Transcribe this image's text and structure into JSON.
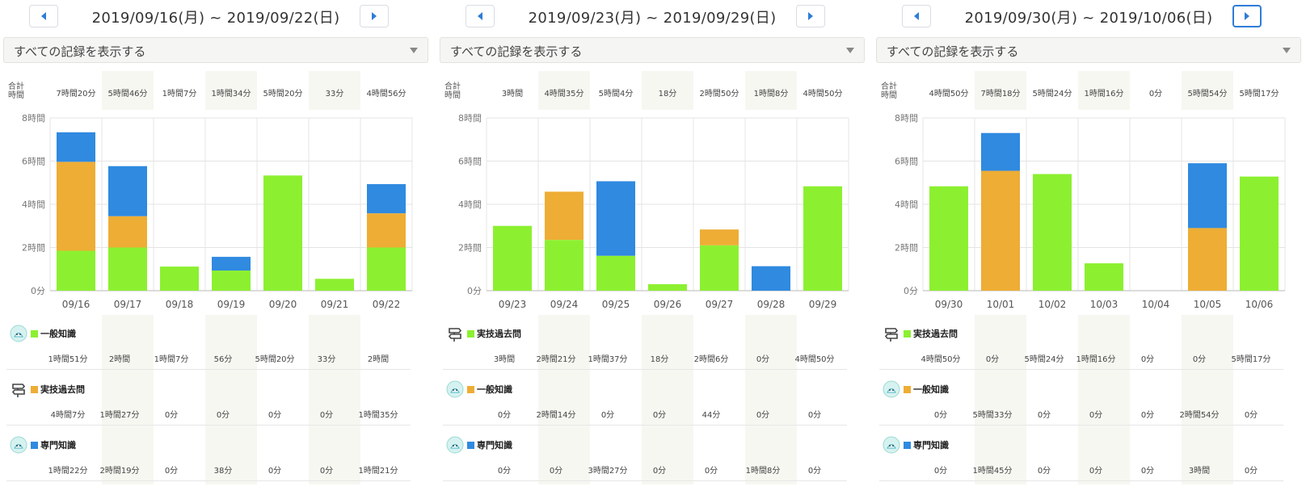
{
  "y_ticks": [
    "0分",
    "2時間",
    "4時間",
    "6時間",
    "8時間"
  ],
  "totals_label": "合計\n時間",
  "weeks": [
    {
      "range": "2019/09/16(月) ~ 2019/09/22(日)",
      "filter": "すべての記録を表示する",
      "totals": [
        "7時間20分",
        "5時間46分",
        "1時間7分",
        "1時間34分",
        "5時間20分",
        "33分",
        "4時間56分"
      ],
      "categories": [
        {
          "name": "一般知識",
          "icon": "owl-icon",
          "color": "#8cf030",
          "values": [
            "1時間51分",
            "2時間",
            "1時間7分",
            "56分",
            "5時間20分",
            "33分",
            "2時間"
          ]
        },
        {
          "name": "実技過去問",
          "icon": "signpost-icon",
          "color": "#eead35",
          "values": [
            "4時間7分",
            "1時間27分",
            "0分",
            "0分",
            "0分",
            "0分",
            "1時間35分"
          ]
        },
        {
          "name": "専門知識",
          "icon": "owl-icon",
          "color": "#2f8ae0",
          "values": [
            "1時間22分",
            "2時間19分",
            "0分",
            "38分",
            "0分",
            "0分",
            "1時間21分"
          ]
        }
      ]
    },
    {
      "range": "2019/09/23(月) ~ 2019/09/29(日)",
      "filter": "すべての記録を表示する",
      "totals": [
        "3時間",
        "4時間35分",
        "5時間4分",
        "18分",
        "2時間50分",
        "1時間8分",
        "4時間50分"
      ],
      "categories": [
        {
          "name": "実技過去問",
          "icon": "signpost-icon",
          "color": "#8cf030",
          "values": [
            "3時間",
            "2時間21分",
            "1時間37分",
            "18分",
            "2時間6分",
            "0分",
            "4時間50分"
          ]
        },
        {
          "name": "一般知識",
          "icon": "owl-icon",
          "color": "#eead35",
          "values": [
            "0分",
            "2時間14分",
            "0分",
            "0分",
            "44分",
            "0分",
            "0分"
          ]
        },
        {
          "name": "専門知識",
          "icon": "owl-icon",
          "color": "#2f8ae0",
          "values": [
            "0分",
            "0分",
            "3時間27分",
            "0分",
            "0分",
            "1時間8分",
            "0分"
          ]
        }
      ]
    },
    {
      "range": "2019/09/30(月) ~ 2019/10/06(日)",
      "filter": "すべての記録を表示する",
      "totals": [
        "4時間50分",
        "7時間18分",
        "5時間24分",
        "1時間16分",
        "0分",
        "5時間54分",
        "5時間17分"
      ],
      "categories": [
        {
          "name": "実技過去問",
          "icon": "signpost-icon",
          "color": "#8cf030",
          "values": [
            "4時間50分",
            "0分",
            "5時間24分",
            "1時間16分",
            "0分",
            "0分",
            "5時間17分"
          ]
        },
        {
          "name": "一般知識",
          "icon": "owl-icon",
          "color": "#eead35",
          "values": [
            "0分",
            "5時間33分",
            "0分",
            "0分",
            "0分",
            "2時間54分",
            "0分"
          ]
        },
        {
          "name": "専門知識",
          "icon": "owl-icon",
          "color": "#2f8ae0",
          "values": [
            "0分",
            "1時間45分",
            "0分",
            "0分",
            "0分",
            "3時間",
            "0分"
          ]
        }
      ]
    }
  ],
  "chart_data": [
    {
      "type": "bar",
      "stacked": true,
      "categories": [
        "09/16",
        "09/17",
        "09/18",
        "09/19",
        "09/20",
        "09/21",
        "09/22"
      ],
      "ylim": [
        0,
        480
      ],
      "y_unit": "分",
      "grid": true,
      "series": [
        {
          "name": "一般知識",
          "color": "#8cf030",
          "values": [
            111,
            120,
            67,
            56,
            320,
            33,
            120
          ]
        },
        {
          "name": "実技過去問",
          "color": "#eead35",
          "values": [
            247,
            87,
            0,
            0,
            0,
            0,
            95
          ]
        },
        {
          "name": "専門知識",
          "color": "#2f8ae0",
          "values": [
            82,
            139,
            0,
            38,
            0,
            0,
            81
          ]
        }
      ]
    },
    {
      "type": "bar",
      "stacked": true,
      "categories": [
        "09/23",
        "09/24",
        "09/25",
        "09/26",
        "09/27",
        "09/28",
        "09/29"
      ],
      "ylim": [
        0,
        480
      ],
      "y_unit": "分",
      "grid": true,
      "series": [
        {
          "name": "実技過去問",
          "color": "#8cf030",
          "values": [
            180,
            141,
            97,
            18,
            126,
            0,
            290
          ]
        },
        {
          "name": "一般知識",
          "color": "#eead35",
          "values": [
            0,
            134,
            0,
            0,
            44,
            0,
            0
          ]
        },
        {
          "name": "専門知識",
          "color": "#2f8ae0",
          "values": [
            0,
            0,
            207,
            0,
            0,
            68,
            0
          ]
        }
      ]
    },
    {
      "type": "bar",
      "stacked": true,
      "categories": [
        "09/30",
        "10/01",
        "10/02",
        "10/03",
        "10/04",
        "10/05",
        "10/06"
      ],
      "ylim": [
        0,
        480
      ],
      "y_unit": "分",
      "grid": true,
      "series": [
        {
          "name": "実技過去問",
          "color": "#8cf030",
          "values": [
            290,
            0,
            324,
            76,
            0,
            0,
            317
          ]
        },
        {
          "name": "一般知識",
          "color": "#eead35",
          "values": [
            0,
            333,
            0,
            0,
            0,
            174,
            0
          ]
        },
        {
          "name": "専門知識",
          "color": "#2f8ae0",
          "values": [
            0,
            105,
            0,
            0,
            0,
            180,
            0
          ]
        }
      ]
    }
  ]
}
